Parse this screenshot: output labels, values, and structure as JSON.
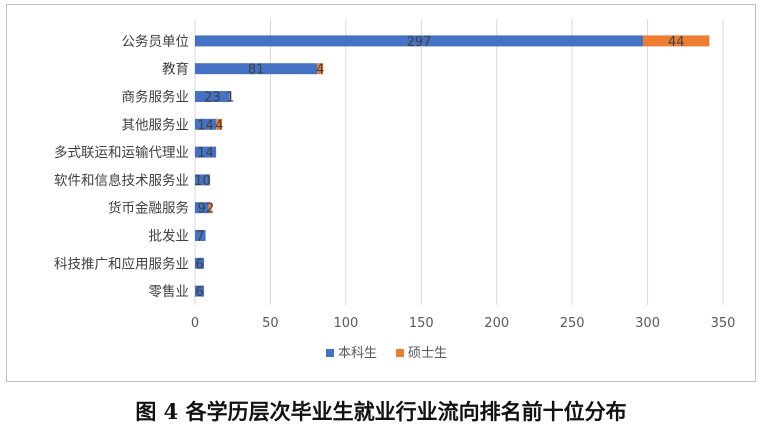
{
  "chart_data": {
    "type": "bar",
    "orientation": "horizontal",
    "stacked": true,
    "categories": [
      "公务员单位",
      "教育",
      "商务服务业",
      "其他服务业",
      "多式联运和运输代理业",
      "软件和信息技术服务业",
      "货币金融服务",
      "批发业",
      "科技推广和应用服务业",
      "零售业"
    ],
    "series": [
      {
        "name": "本科生",
        "color": "#4472C4",
        "values": [
          297,
          81,
          23,
          14,
          14,
          10,
          9,
          7,
          6,
          6
        ]
      },
      {
        "name": "硕士生",
        "color": "#ED7D31",
        "values": [
          44,
          4,
          1,
          4,
          null,
          null,
          2,
          null,
          null,
          null
        ]
      }
    ],
    "xlim": [
      0,
      350
    ],
    "xticks": [
      0,
      50,
      100,
      150,
      200,
      250,
      300,
      350
    ],
    "grid": "vertical",
    "legend": "bottom",
    "data_labels": true
  },
  "caption": "图 4  各学历层次毕业生就业行业流向排名前十位分布"
}
